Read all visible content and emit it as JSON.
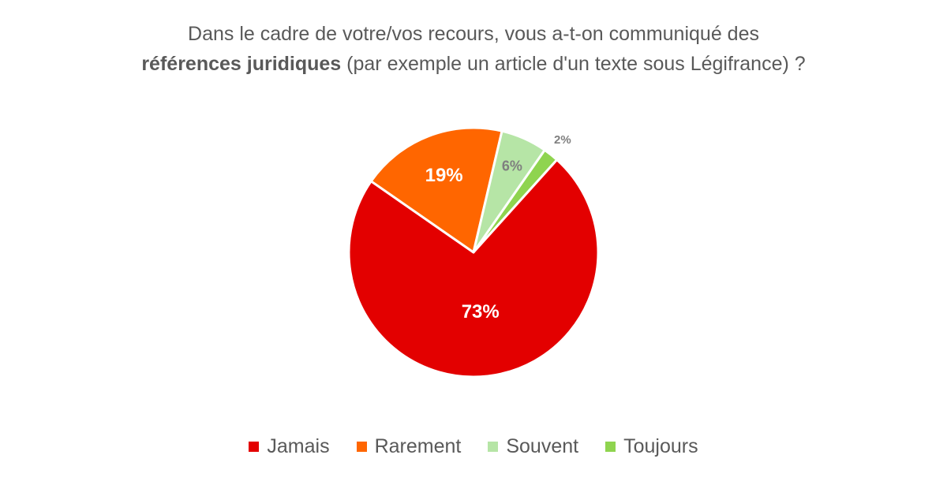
{
  "chart_data": {
    "type": "pie",
    "title": {
      "line1": "Dans le cadre de votre/vos recours, vous a-t-on communiqué des",
      "line2_bold": "références juridiques",
      "line2_rest": " (par exemple un article d'un texte sous Légifrance) ?"
    },
    "categories": [
      "Jamais",
      "Rarement",
      "Souvent",
      "Toujours"
    ],
    "values": [
      73,
      19,
      6,
      2
    ],
    "labels": [
      "73%",
      "19%",
      "6%",
      "2%"
    ],
    "colors": [
      "#e30000",
      "#ff6600",
      "#b6e5a6",
      "#8fd44f"
    ],
    "label_colors": [
      "#ffffff",
      "#ffffff",
      "#7f7f7f",
      "#7f7f7f"
    ],
    "legend_position": "bottom",
    "start_direction": "clockwise-from-toujours"
  }
}
